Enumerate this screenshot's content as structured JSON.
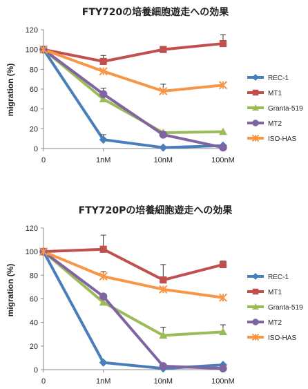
{
  "chart_data": [
    {
      "type": "line",
      "title": "FTY720の培養細胞遊走への効果",
      "xlabel": "",
      "ylabel": "migration (%)",
      "categories": [
        "0",
        "1nM",
        "10nM",
        "100nM"
      ],
      "ylim": [
        0,
        120
      ],
      "yticks": [
        "0",
        "20",
        "40",
        "60",
        "80",
        "100",
        "120"
      ],
      "grid": false,
      "legend_position": "right",
      "series": [
        {
          "name": "REC-1",
          "color": "#4a7ebb",
          "marker": "diamond",
          "values": [
            100,
            9,
            1,
            3
          ],
          "errors": [
            0,
            5,
            0,
            0
          ]
        },
        {
          "name": "MT1",
          "color": "#c0504d",
          "marker": "square",
          "values": [
            100,
            88,
            100,
            106
          ],
          "errors": [
            0,
            6,
            3,
            9
          ]
        },
        {
          "name": "Granta-519",
          "color": "#9bbb59",
          "marker": "triangle",
          "values": [
            100,
            50,
            16,
            17
          ],
          "errors": [
            0,
            0,
            0,
            0
          ]
        },
        {
          "name": "MT2",
          "color": "#8064a2",
          "marker": "circle",
          "values": [
            100,
            55,
            14,
            1
          ],
          "errors": [
            0,
            6,
            3,
            0
          ]
        },
        {
          "name": "ISO-HAS",
          "color": "#f79646",
          "marker": "x",
          "values": [
            100,
            78,
            58,
            64
          ],
          "errors": [
            0,
            0,
            7,
            0
          ]
        }
      ]
    },
    {
      "type": "line",
      "title": "FTY720Pの培養細胞遊走への効果",
      "xlabel": "",
      "ylabel": "migration (%)",
      "categories": [
        "0",
        "1nM",
        "10nM",
        "100nM"
      ],
      "ylim": [
        0,
        120
      ],
      "yticks": [
        "0",
        "20",
        "40",
        "60",
        "80",
        "100",
        "120"
      ],
      "grid": false,
      "legend_position": "right",
      "series": [
        {
          "name": "REC-1",
          "color": "#4a7ebb",
          "marker": "diamond",
          "values": [
            100,
            6,
            1,
            4
          ],
          "errors": [
            0,
            0,
            0,
            0
          ]
        },
        {
          "name": "MT1",
          "color": "#c0504d",
          "marker": "square",
          "values": [
            100,
            102,
            76,
            89
          ],
          "errors": [
            0,
            12,
            13,
            3
          ]
        },
        {
          "name": "Granta-519",
          "color": "#9bbb59",
          "marker": "triangle",
          "values": [
            100,
            57,
            29,
            32
          ],
          "errors": [
            0,
            0,
            7,
            6
          ]
        },
        {
          "name": "MT2",
          "color": "#8064a2",
          "marker": "circle",
          "values": [
            100,
            62,
            3,
            1
          ],
          "errors": [
            0,
            0,
            0,
            0
          ]
        },
        {
          "name": "ISO-HAS",
          "color": "#f79646",
          "marker": "x",
          "values": [
            100,
            79,
            68,
            61
          ],
          "errors": [
            0,
            4,
            0,
            0
          ]
        }
      ]
    }
  ]
}
